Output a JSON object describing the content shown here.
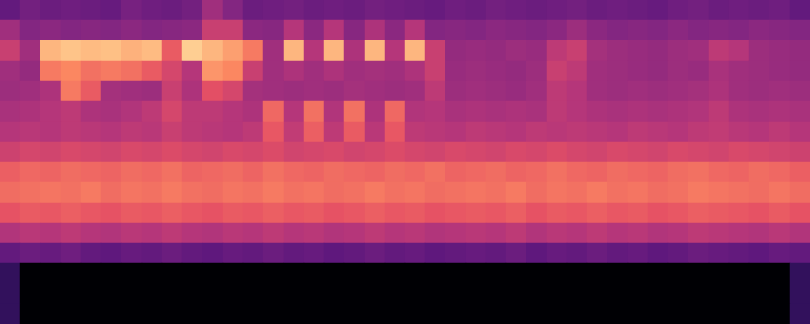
{
  "chart_data": {
    "type": "heatmap",
    "zlim": [
      0,
      100
    ],
    "tick_labels": false,
    "grid": false,
    "cells": [
      [
        30,
        34,
        32,
        33,
        32,
        31,
        35,
        33,
        32,
        34,
        45,
        38,
        32,
        33,
        34,
        32,
        33,
        32,
        34,
        33,
        32,
        31,
        33,
        32,
        34,
        33,
        32,
        33,
        34,
        32,
        33,
        32,
        31,
        33,
        34,
        32,
        33,
        32,
        33,
        30
      ],
      [
        45,
        38,
        40,
        38,
        39,
        38,
        40,
        38,
        39,
        40,
        55,
        55,
        40,
        39,
        50,
        40,
        50,
        39,
        48,
        40,
        50,
        38,
        39,
        38,
        40,
        39,
        38,
        40,
        44,
        40,
        38,
        39,
        38,
        40,
        38,
        39,
        38,
        40,
        39,
        38
      ],
      [
        55,
        45,
        85,
        88,
        86,
        87,
        84,
        86,
        65,
        90,
        85,
        80,
        72,
        45,
        85,
        50,
        85,
        48,
        85,
        50,
        85,
        55,
        42,
        43,
        42,
        44,
        43,
        52,
        55,
        46,
        44,
        43,
        42,
        44,
        45,
        52,
        50,
        44,
        43,
        42
      ],
      [
        45,
        42,
        72,
        75,
        70,
        72,
        70,
        65,
        58,
        50,
        78,
        75,
        55,
        45,
        48,
        45,
        48,
        45,
        46,
        45,
        48,
        55,
        43,
        44,
        43,
        42,
        44,
        55,
        52,
        45,
        44,
        43,
        42,
        44,
        43,
        47,
        45,
        44,
        43,
        42
      ],
      [
        44,
        45,
        48,
        72,
        65,
        46,
        45,
        44,
        55,
        48,
        62,
        58,
        46,
        45,
        44,
        45,
        44,
        46,
        45,
        44,
        45,
        52,
        44,
        45,
        44,
        43,
        45,
        52,
        50,
        45,
        44,
        45,
        44,
        45,
        46,
        48,
        45,
        44,
        45,
        44
      ],
      [
        47,
        48,
        50,
        52,
        48,
        47,
        49,
        52,
        58,
        52,
        52,
        50,
        48,
        68,
        50,
        70,
        49,
        70,
        48,
        68,
        49,
        50,
        47,
        48,
        47,
        48,
        47,
        52,
        50,
        48,
        47,
        48,
        47,
        48,
        49,
        52,
        48,
        47,
        48,
        47
      ],
      [
        50,
        51,
        50,
        52,
        51,
        50,
        52,
        51,
        55,
        52,
        51,
        50,
        52,
        64,
        53,
        66,
        52,
        65,
        51,
        64,
        52,
        51,
        50,
        52,
        51,
        50,
        52,
        51,
        52,
        51,
        50,
        52,
        51,
        50,
        52,
        53,
        51,
        50,
        52,
        50
      ],
      [
        56,
        58,
        57,
        59,
        58,
        57,
        59,
        58,
        60,
        58,
        57,
        59,
        58,
        60,
        57,
        58,
        59,
        57,
        58,
        60,
        58,
        57,
        59,
        58,
        57,
        59,
        58,
        60,
        58,
        57,
        59,
        58,
        57,
        59,
        58,
        57,
        59,
        58,
        57,
        56
      ],
      [
        66,
        68,
        67,
        69,
        68,
        67,
        69,
        68,
        70,
        67,
        68,
        69,
        67,
        70,
        68,
        67,
        69,
        68,
        67,
        69,
        68,
        70,
        67,
        68,
        69,
        67,
        68,
        70,
        68,
        67,
        69,
        68,
        67,
        69,
        70,
        68,
        67,
        69,
        68,
        66
      ],
      [
        69,
        70,
        71,
        70,
        72,
        69,
        71,
        70,
        72,
        70,
        69,
        71,
        70,
        72,
        70,
        71,
        69,
        70,
        72,
        70,
        71,
        69,
        70,
        71,
        70,
        72,
        69,
        71,
        70,
        72,
        70,
        71,
        69,
        70,
        72,
        71,
        70,
        69,
        71,
        69
      ],
      [
        63,
        65,
        64,
        66,
        64,
        63,
        65,
        64,
        66,
        64,
        63,
        65,
        64,
        66,
        64,
        65,
        63,
        64,
        66,
        64,
        65,
        63,
        64,
        65,
        64,
        66,
        63,
        65,
        64,
        66,
        64,
        65,
        63,
        64,
        66,
        65,
        64,
        63,
        65,
        63
      ],
      [
        49,
        51,
        50,
        52,
        50,
        49,
        51,
        50,
        52,
        50,
        49,
        51,
        50,
        52,
        50,
        51,
        49,
        50,
        52,
        50,
        51,
        49,
        50,
        51,
        50,
        52,
        49,
        51,
        50,
        52,
        50,
        51,
        49,
        50,
        52,
        51,
        50,
        49,
        51,
        49
      ],
      [
        30,
        32,
        31,
        33,
        30,
        29,
        31,
        30,
        32,
        30,
        29,
        31,
        30,
        32,
        30,
        31,
        29,
        30,
        32,
        30,
        31,
        29,
        30,
        31,
        30,
        32,
        29,
        31,
        30,
        32,
        30,
        31,
        29,
        30,
        32,
        31,
        30,
        29,
        31,
        30
      ],
      [
        18,
        0,
        0,
        0,
        0,
        0,
        0,
        0,
        0,
        0,
        0,
        0,
        0,
        0,
        0,
        0,
        0,
        0,
        0,
        0,
        0,
        0,
        0,
        0,
        0,
        0,
        0,
        0,
        0,
        0,
        0,
        0,
        0,
        0,
        0,
        0,
        0,
        0,
        0,
        18
      ],
      [
        18,
        0,
        0,
        0,
        0,
        0,
        0,
        0,
        0,
        0,
        0,
        0,
        0,
        0,
        0,
        0,
        0,
        0,
        0,
        0,
        0,
        0,
        0,
        0,
        0,
        0,
        0,
        0,
        0,
        0,
        0,
        0,
        0,
        0,
        0,
        0,
        0,
        0,
        0,
        18
      ],
      [
        18,
        0,
        0,
        0,
        0,
        0,
        0,
        0,
        0,
        0,
        0,
        0,
        0,
        0,
        0,
        0,
        0,
        0,
        0,
        0,
        0,
        0,
        0,
        0,
        0,
        0,
        0,
        0,
        0,
        0,
        0,
        0,
        0,
        0,
        0,
        0,
        0,
        0,
        0,
        18
      ]
    ]
  }
}
